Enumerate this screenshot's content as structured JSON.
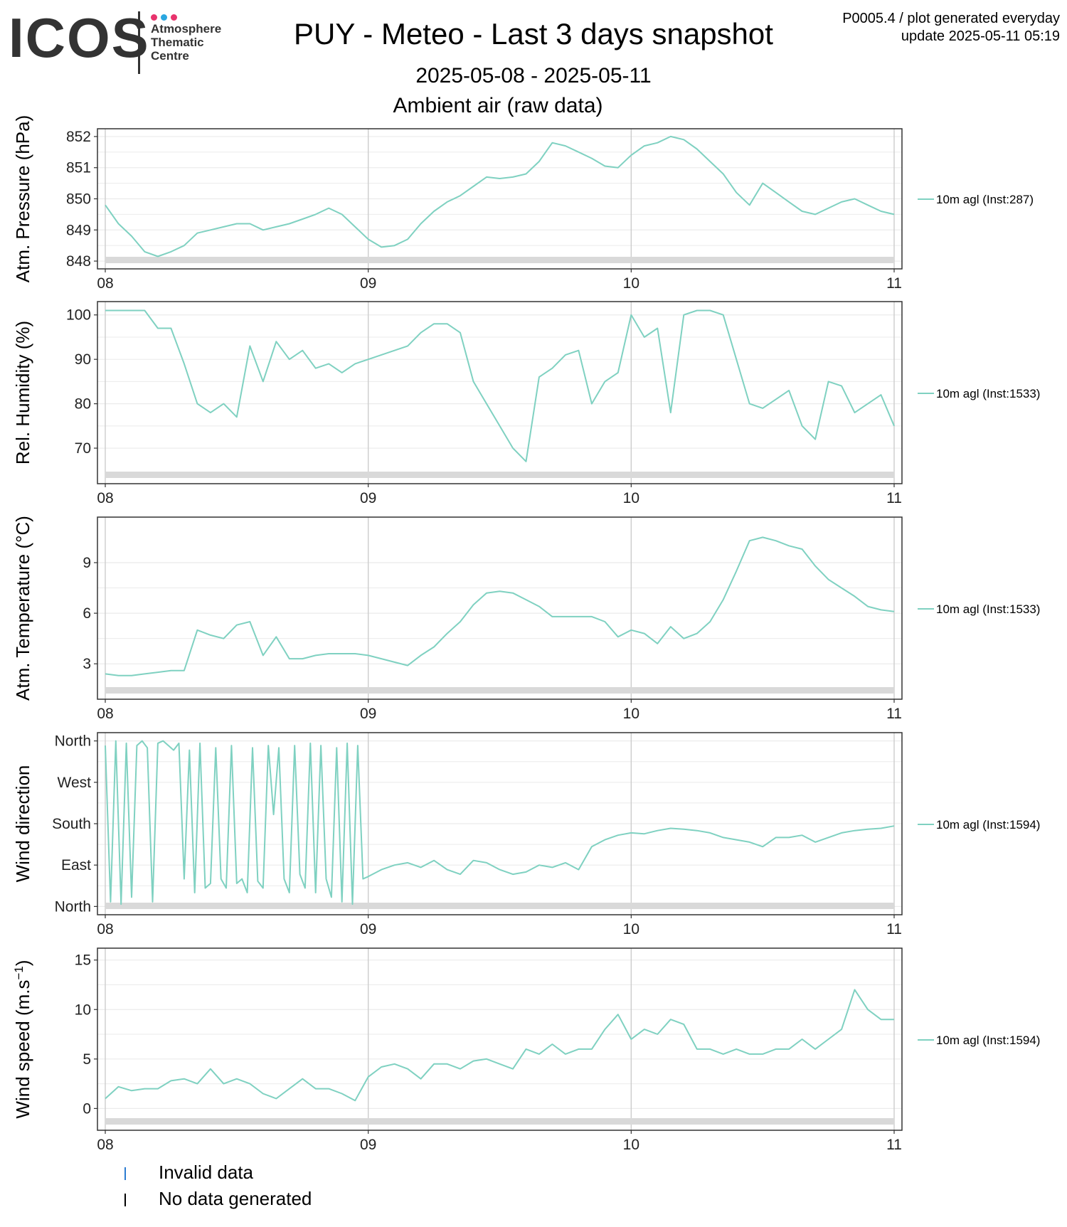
{
  "header": {
    "logo_text": "ICOS",
    "logo_sub_lines": [
      "Atmosphere",
      "Thematic",
      "Centre"
    ],
    "logo_dot_colors": [
      "#e8336d",
      "#2aa7e0",
      "#e8336d"
    ],
    "title": "PUY - Meteo - Last 3 days snapshot",
    "date_range": "2025-05-08 - 2025-05-11",
    "subtitle": "Ambient air (raw data)",
    "note_line1": "P0005.4 / plot generated everyday",
    "note_line2": "update  2025-05-11 05:19"
  },
  "colors": {
    "series": "#7fd1c1",
    "grid_major": "#cccccc",
    "grid_minor": "#ebebeb",
    "band": "#d9d9d9",
    "invalid": "#2b7bd1",
    "nodata": "#000000"
  },
  "legend_bottom": [
    {
      "label": "Invalid data",
      "color": "#2b7bd1"
    },
    {
      "label": "No data generated",
      "color": "#000000"
    }
  ],
  "chart_data": [
    {
      "type": "line",
      "ylabel": "Atm. Pressure (hPa)",
      "x_ticks": [
        "08",
        "09",
        "10",
        "11"
      ],
      "xlim": [
        0,
        3
      ],
      "y_ticks": [
        848,
        849,
        850,
        851,
        852
      ],
      "ylim": [
        847.75,
        852.25
      ],
      "series": [
        {
          "name": "10m agl (Inst:287)",
          "x": [
            0,
            0.05,
            0.1,
            0.15,
            0.2,
            0.25,
            0.3,
            0.35,
            0.4,
            0.45,
            0.5,
            0.55,
            0.6,
            0.65,
            0.7,
            0.75,
            0.8,
            0.85,
            0.9,
            0.95,
            1.0,
            1.05,
            1.1,
            1.15,
            1.2,
            1.25,
            1.3,
            1.35,
            1.4,
            1.45,
            1.5,
            1.55,
            1.6,
            1.65,
            1.7,
            1.75,
            1.8,
            1.85,
            1.9,
            1.95,
            2.0,
            2.05,
            2.1,
            2.15,
            2.2,
            2.25,
            2.3,
            2.35,
            2.4,
            2.45,
            2.5,
            2.55,
            2.6,
            2.65,
            2.7,
            2.75,
            2.8,
            2.85,
            2.9,
            2.95,
            3.0
          ],
          "y": [
            849.8,
            849.2,
            848.8,
            848.3,
            848.15,
            848.3,
            848.5,
            848.9,
            849.0,
            849.1,
            849.2,
            849.2,
            849.0,
            849.1,
            849.2,
            849.35,
            849.5,
            849.7,
            849.5,
            849.1,
            848.7,
            848.45,
            848.5,
            848.7,
            849.2,
            849.6,
            849.9,
            850.1,
            850.4,
            850.7,
            850.65,
            850.7,
            850.8,
            851.2,
            851.8,
            851.7,
            851.5,
            851.3,
            851.05,
            851.0,
            851.4,
            851.7,
            851.8,
            852.0,
            851.9,
            851.6,
            851.2,
            850.8,
            850.2,
            849.8,
            850.5,
            850.2,
            849.9,
            849.6,
            849.5,
            849.7,
            849.9,
            850.0,
            849.8,
            849.6,
            849.5
          ]
        }
      ]
    },
    {
      "type": "line",
      "ylabel": "Rel. Humidity (%)",
      "x_ticks": [
        "08",
        "09",
        "10",
        "11"
      ],
      "xlim": [
        0,
        3
      ],
      "y_ticks": [
        70,
        80,
        90,
        100
      ],
      "ylim": [
        62,
        103
      ],
      "series": [
        {
          "name": "10m agl (Inst:1533)",
          "x": [
            0,
            0.05,
            0.1,
            0.15,
            0.2,
            0.25,
            0.3,
            0.35,
            0.4,
            0.45,
            0.5,
            0.55,
            0.6,
            0.65,
            0.7,
            0.75,
            0.8,
            0.85,
            0.9,
            0.95,
            1.0,
            1.05,
            1.1,
            1.15,
            1.2,
            1.25,
            1.3,
            1.35,
            1.4,
            1.45,
            1.5,
            1.55,
            1.6,
            1.65,
            1.7,
            1.75,
            1.8,
            1.85,
            1.9,
            1.95,
            2.0,
            2.05,
            2.1,
            2.15,
            2.2,
            2.25,
            2.3,
            2.35,
            2.4,
            2.45,
            2.5,
            2.55,
            2.6,
            2.65,
            2.7,
            2.75,
            2.8,
            2.85,
            2.9,
            2.95,
            3.0
          ],
          "y": [
            101,
            101,
            101,
            101,
            97,
            97,
            89,
            80,
            78,
            80,
            77,
            93,
            85,
            94,
            90,
            92,
            88,
            89,
            87,
            89,
            90,
            91,
            92,
            93,
            96,
            98,
            98,
            96,
            85,
            80,
            75,
            70,
            67,
            86,
            88,
            91,
            92,
            80,
            85,
            87,
            100,
            95,
            97,
            78,
            100,
            101,
            101,
            100,
            90,
            80,
            79,
            81,
            83,
            75,
            72,
            85,
            84,
            78,
            80,
            82,
            75
          ]
        }
      ]
    },
    {
      "type": "line",
      "ylabel": "Atm. Temperature (°C)",
      "x_ticks": [
        "08",
        "09",
        "10",
        "11"
      ],
      "xlim": [
        0,
        3
      ],
      "y_ticks": [
        3,
        6,
        9
      ],
      "ylim": [
        0.9,
        11.7
      ],
      "series": [
        {
          "name": "10m agl (Inst:1533)",
          "x": [
            0,
            0.05,
            0.1,
            0.15,
            0.2,
            0.25,
            0.3,
            0.35,
            0.4,
            0.45,
            0.5,
            0.55,
            0.6,
            0.65,
            0.7,
            0.75,
            0.8,
            0.85,
            0.9,
            0.95,
            1.0,
            1.05,
            1.1,
            1.15,
            1.2,
            1.25,
            1.3,
            1.35,
            1.4,
            1.45,
            1.5,
            1.55,
            1.6,
            1.65,
            1.7,
            1.75,
            1.8,
            1.85,
            1.9,
            1.95,
            2.0,
            2.05,
            2.1,
            2.15,
            2.2,
            2.25,
            2.3,
            2.35,
            2.4,
            2.45,
            2.5,
            2.55,
            2.6,
            2.65,
            2.7,
            2.75,
            2.8,
            2.85,
            2.9,
            2.95,
            3.0
          ],
          "y": [
            2.4,
            2.3,
            2.3,
            2.4,
            2.5,
            2.6,
            2.6,
            5.0,
            4.7,
            4.5,
            5.3,
            5.5,
            3.5,
            4.6,
            3.3,
            3.3,
            3.5,
            3.6,
            3.6,
            3.6,
            3.5,
            3.3,
            3.1,
            2.9,
            3.5,
            4.0,
            4.8,
            5.5,
            6.5,
            7.2,
            7.3,
            7.2,
            6.8,
            6.4,
            5.8,
            5.8,
            5.8,
            5.8,
            5.5,
            4.6,
            5.0,
            4.8,
            4.2,
            5.2,
            4.5,
            4.8,
            5.5,
            6.8,
            8.5,
            10.3,
            10.5,
            10.3,
            10.0,
            9.8,
            8.8,
            8.0,
            7.5,
            7.0,
            6.4,
            6.2,
            6.1
          ]
        }
      ]
    },
    {
      "type": "line",
      "ylabel": "Wind direction",
      "x_ticks": [
        "08",
        "09",
        "10",
        "11"
      ],
      "xlim": [
        0,
        3
      ],
      "y_ticks": [
        0,
        90,
        180,
        270,
        360
      ],
      "y_tick_labels": [
        "North",
        "East",
        "South",
        "West",
        "North"
      ],
      "ylim": [
        -18,
        378
      ],
      "series": [
        {
          "name": "10m agl (Inst:1594)",
          "x": [
            0,
            0.02,
            0.04,
            0.06,
            0.08,
            0.1,
            0.12,
            0.14,
            0.16,
            0.18,
            0.2,
            0.22,
            0.24,
            0.26,
            0.28,
            0.3,
            0.32,
            0.34,
            0.36,
            0.38,
            0.4,
            0.42,
            0.44,
            0.46,
            0.48,
            0.5,
            0.52,
            0.54,
            0.56,
            0.58,
            0.6,
            0.62,
            0.64,
            0.66,
            0.68,
            0.7,
            0.72,
            0.74,
            0.76,
            0.78,
            0.8,
            0.82,
            0.84,
            0.86,
            0.88,
            0.9,
            0.92,
            0.94,
            0.96,
            0.98,
            1.0,
            1.05,
            1.1,
            1.15,
            1.2,
            1.25,
            1.3,
            1.35,
            1.4,
            1.45,
            1.5,
            1.55,
            1.6,
            1.65,
            1.7,
            1.75,
            1.8,
            1.85,
            1.9,
            1.95,
            2.0,
            2.05,
            2.1,
            2.15,
            2.2,
            2.25,
            2.3,
            2.35,
            2.4,
            2.45,
            2.5,
            2.55,
            2.6,
            2.65,
            2.7,
            2.75,
            2.8,
            2.85,
            2.9,
            2.95,
            3.0
          ],
          "y": [
            350,
            10,
            360,
            5,
            355,
            20,
            350,
            360,
            345,
            10,
            355,
            360,
            350,
            340,
            355,
            60,
            340,
            30,
            355,
            40,
            50,
            345,
            60,
            40,
            350,
            50,
            60,
            30,
            345,
            55,
            40,
            350,
            200,
            345,
            60,
            30,
            350,
            70,
            40,
            355,
            30,
            350,
            60,
            20,
            345,
            10,
            355,
            5,
            350,
            60,
            65,
            80,
            90,
            95,
            85,
            100,
            80,
            70,
            100,
            95,
            80,
            70,
            75,
            90,
            85,
            95,
            80,
            130,
            145,
            155,
            160,
            158,
            165,
            170,
            168,
            165,
            160,
            150,
            145,
            140,
            130,
            150,
            150,
            155,
            140,
            150,
            160,
            165,
            168,
            170,
            175
          ]
        }
      ]
    },
    {
      "type": "line",
      "ylabel": "Wind speed (m.s-1)",
      "x_ticks": [
        "08",
        "09",
        "10",
        "11"
      ],
      "xlim": [
        0,
        3
      ],
      "y_ticks": [
        0,
        5,
        10,
        15
      ],
      "ylim": [
        -2.2,
        16.2
      ],
      "series": [
        {
          "name": "10m agl (Inst:1594)",
          "x": [
            0,
            0.05,
            0.1,
            0.15,
            0.2,
            0.25,
            0.3,
            0.35,
            0.4,
            0.45,
            0.5,
            0.55,
            0.6,
            0.65,
            0.7,
            0.75,
            0.8,
            0.85,
            0.9,
            0.95,
            1.0,
            1.05,
            1.1,
            1.15,
            1.2,
            1.25,
            1.3,
            1.35,
            1.4,
            1.45,
            1.5,
            1.55,
            1.6,
            1.65,
            1.7,
            1.75,
            1.8,
            1.85,
            1.9,
            1.95,
            2.0,
            2.05,
            2.1,
            2.15,
            2.2,
            2.25,
            2.3,
            2.35,
            2.4,
            2.45,
            2.5,
            2.55,
            2.6,
            2.65,
            2.7,
            2.75,
            2.8,
            2.85,
            2.9,
            2.95,
            3.0
          ],
          "y": [
            1.0,
            2.2,
            1.8,
            2.0,
            2.0,
            2.8,
            3.0,
            2.5,
            4.0,
            2.5,
            3.0,
            2.5,
            1.5,
            1.0,
            2.0,
            3.0,
            2.0,
            2.0,
            1.5,
            0.8,
            3.2,
            4.2,
            4.5,
            4.0,
            3.0,
            4.5,
            4.5,
            4.0,
            4.8,
            5.0,
            4.5,
            4.0,
            6.0,
            5.5,
            6.5,
            5.5,
            6.0,
            6.0,
            8.0,
            9.5,
            7.0,
            8.0,
            7.5,
            9.0,
            8.5,
            6.0,
            6.0,
            5.5,
            6.0,
            5.5,
            5.5,
            6.0,
            6.0,
            7.0,
            6.0,
            7.0,
            8.0,
            12.0,
            10.0,
            9.0,
            9.0
          ]
        }
      ]
    }
  ]
}
